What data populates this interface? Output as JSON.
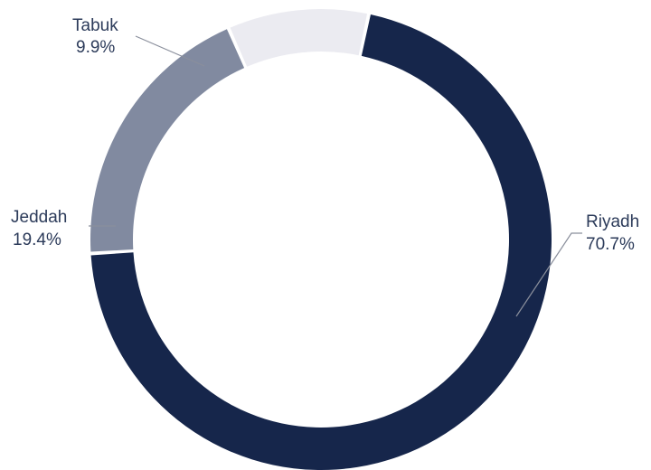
{
  "chart_data": {
    "type": "pie",
    "variant": "donut",
    "title": "",
    "slices": [
      {
        "name": "Riyadh",
        "value": 70.7,
        "label": "70.7%",
        "color": "#16264b"
      },
      {
        "name": "Jeddah",
        "value": 19.4,
        "label": "19.4%",
        "color": "#818aa0"
      },
      {
        "name": "Tabuk",
        "value": 9.9,
        "label": "9.9%",
        "color": "#ebebf1"
      }
    ],
    "legend": "none"
  }
}
